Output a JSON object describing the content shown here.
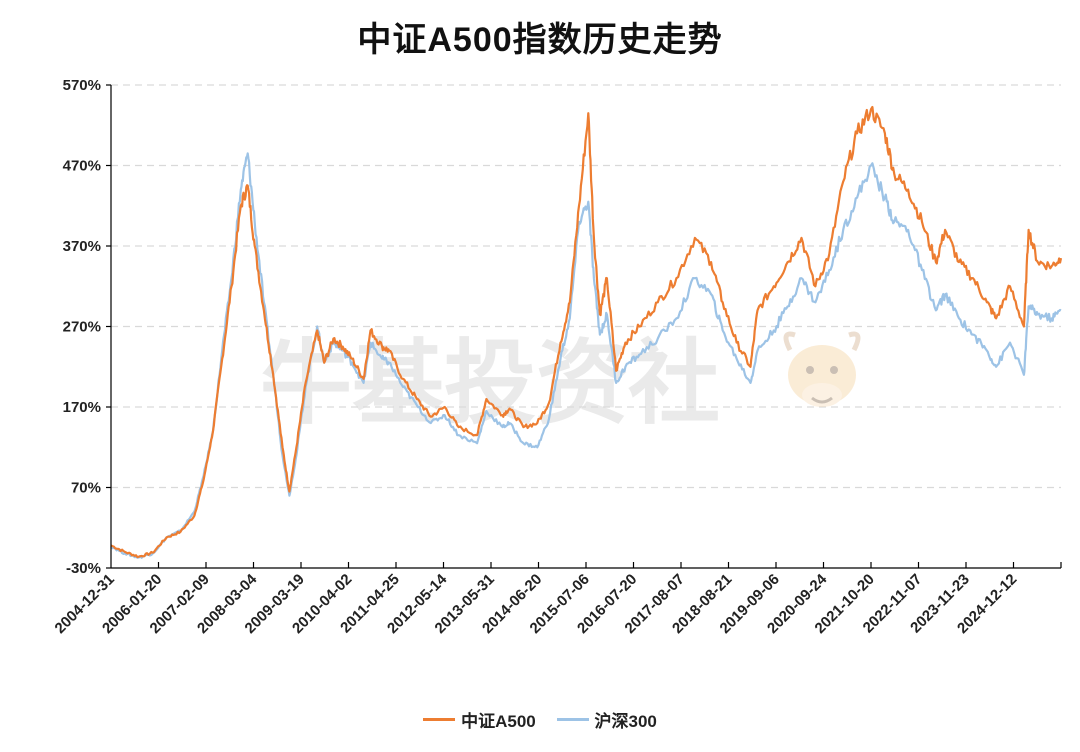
{
  "title": "中证A500指数历史走势",
  "watermark": "牛基投资社",
  "colors": {
    "a500": "#ED7D31",
    "hs300": "#9DC3E6",
    "grid": "#D9D9D9",
    "axis": "#000000"
  },
  "chart_data": {
    "type": "line",
    "title": "中证A500指数历史走势",
    "xlabel": "",
    "ylabel": "",
    "ylim": [
      -30,
      570
    ],
    "yticks": [
      -30,
      70,
      170,
      270,
      370,
      470,
      570
    ],
    "ytick_labels": [
      "-30%",
      "70%",
      "170%",
      "270%",
      "370%",
      "470%",
      "570%"
    ],
    "xtick_labels": [
      "2004-12-31",
      "2006-01-20",
      "2007-02-09",
      "2008-03-04",
      "2009-03-19",
      "2010-04-02",
      "2011-04-25",
      "2012-05-14",
      "2013-05-31",
      "2014-06-20",
      "2015-07-06",
      "2016-07-20",
      "2017-08-07",
      "2018-08-21",
      "2019-09-06",
      "2020-09-24",
      "2021-10-20",
      "2022-11-07",
      "2023-11-23",
      "2024-12-12"
    ],
    "grid": "horizontal dashed",
    "legend_position": "bottom",
    "x_unit": "year",
    "series": [
      {
        "name": "中证A500",
        "color": "#ED7D31",
        "x": [
          2005.0,
          2005.3,
          2005.6,
          2005.9,
          2006.2,
          2006.5,
          2006.8,
          2007.0,
          2007.2,
          2007.4,
          2007.6,
          2007.8,
          2007.95,
          2008.1,
          2008.3,
          2008.5,
          2008.7,
          2008.85,
          2009.0,
          2009.2,
          2009.45,
          2009.6,
          2009.8,
          2010.0,
          2010.2,
          2010.45,
          2010.6,
          2010.85,
          2011.0,
          2011.3,
          2011.6,
          2011.9,
          2012.2,
          2012.5,
          2012.9,
          2013.1,
          2013.45,
          2013.6,
          2013.9,
          2014.2,
          2014.45,
          2014.7,
          2014.9,
          2015.1,
          2015.3,
          2015.42,
          2015.55,
          2015.7,
          2015.9,
          2016.1,
          2016.4,
          2016.8,
          2017.2,
          2017.6,
          2017.95,
          2018.2,
          2018.5,
          2018.8,
          2018.95,
          2019.3,
          2019.6,
          2019.9,
          2020.2,
          2020.5,
          2020.8,
          2021.1,
          2021.4,
          2021.7,
          2021.9,
          2022.2,
          2022.5,
          2022.8,
          2023.0,
          2023.3,
          2023.6,
          2023.9,
          2024.1,
          2024.4,
          2024.7,
          2024.8,
          2025.0,
          2025.3,
          2025.5
        ],
        "values": [
          -2,
          -10,
          -16,
          -11,
          8,
          15,
          35,
          80,
          140,
          230,
          320,
          420,
          445,
          370,
          290,
          210,
          120,
          65,
          120,
          200,
          265,
          225,
          255,
          245,
          230,
          205,
          265,
          245,
          240,
          205,
          180,
          158,
          170,
          145,
          135,
          180,
          160,
          168,
          145,
          150,
          175,
          250,
          300,
          420,
          535,
          380,
          285,
          330,
          215,
          250,
          270,
          300,
          330,
          380,
          350,
          300,
          250,
          220,
          290,
          320,
          350,
          380,
          320,
          360,
          450,
          510,
          540,
          510,
          460,
          440,
          400,
          350,
          390,
          350,
          330,
          300,
          280,
          320,
          270,
          390,
          350,
          345,
          355
        ]
      },
      {
        "name": "沪深300",
        "color": "#9DC3E6",
        "x": [
          2005.0,
          2005.3,
          2005.6,
          2005.9,
          2006.2,
          2006.5,
          2006.8,
          2007.0,
          2007.2,
          2007.4,
          2007.6,
          2007.8,
          2007.95,
          2008.1,
          2008.3,
          2008.5,
          2008.7,
          2008.85,
          2009.0,
          2009.2,
          2009.45,
          2009.6,
          2009.8,
          2010.0,
          2010.2,
          2010.45,
          2010.6,
          2010.85,
          2011.0,
          2011.3,
          2011.6,
          2011.9,
          2012.2,
          2012.5,
          2012.9,
          2013.1,
          2013.45,
          2013.6,
          2013.9,
          2014.2,
          2014.45,
          2014.7,
          2014.9,
          2015.1,
          2015.3,
          2015.42,
          2015.55,
          2015.7,
          2015.9,
          2016.1,
          2016.4,
          2016.8,
          2017.2,
          2017.6,
          2017.95,
          2018.2,
          2018.5,
          2018.8,
          2018.95,
          2019.3,
          2019.6,
          2019.9,
          2020.2,
          2020.5,
          2020.8,
          2021.1,
          2021.4,
          2021.7,
          2021.9,
          2022.2,
          2022.5,
          2022.8,
          2023.0,
          2023.3,
          2023.6,
          2023.9,
          2024.1,
          2024.4,
          2024.7,
          2024.8,
          2025.0,
          2025.3,
          2025.5
        ],
        "values": [
          -3,
          -12,
          -17,
          -12,
          8,
          16,
          40,
          85,
          140,
          240,
          330,
          440,
          485,
          400,
          300,
          210,
          110,
          60,
          110,
          195,
          270,
          225,
          250,
          240,
          225,
          200,
          250,
          230,
          225,
          195,
          172,
          150,
          160,
          135,
          125,
          165,
          145,
          150,
          125,
          120,
          155,
          230,
          280,
          400,
          425,
          330,
          260,
          285,
          200,
          220,
          235,
          255,
          280,
          330,
          310,
          265,
          230,
          200,
          240,
          265,
          295,
          330,
          300,
          340,
          390,
          430,
          470,
          430,
          400,
          390,
          340,
          290,
          310,
          280,
          260,
          240,
          220,
          250,
          210,
          295,
          285,
          280,
          290
        ]
      }
    ]
  }
}
